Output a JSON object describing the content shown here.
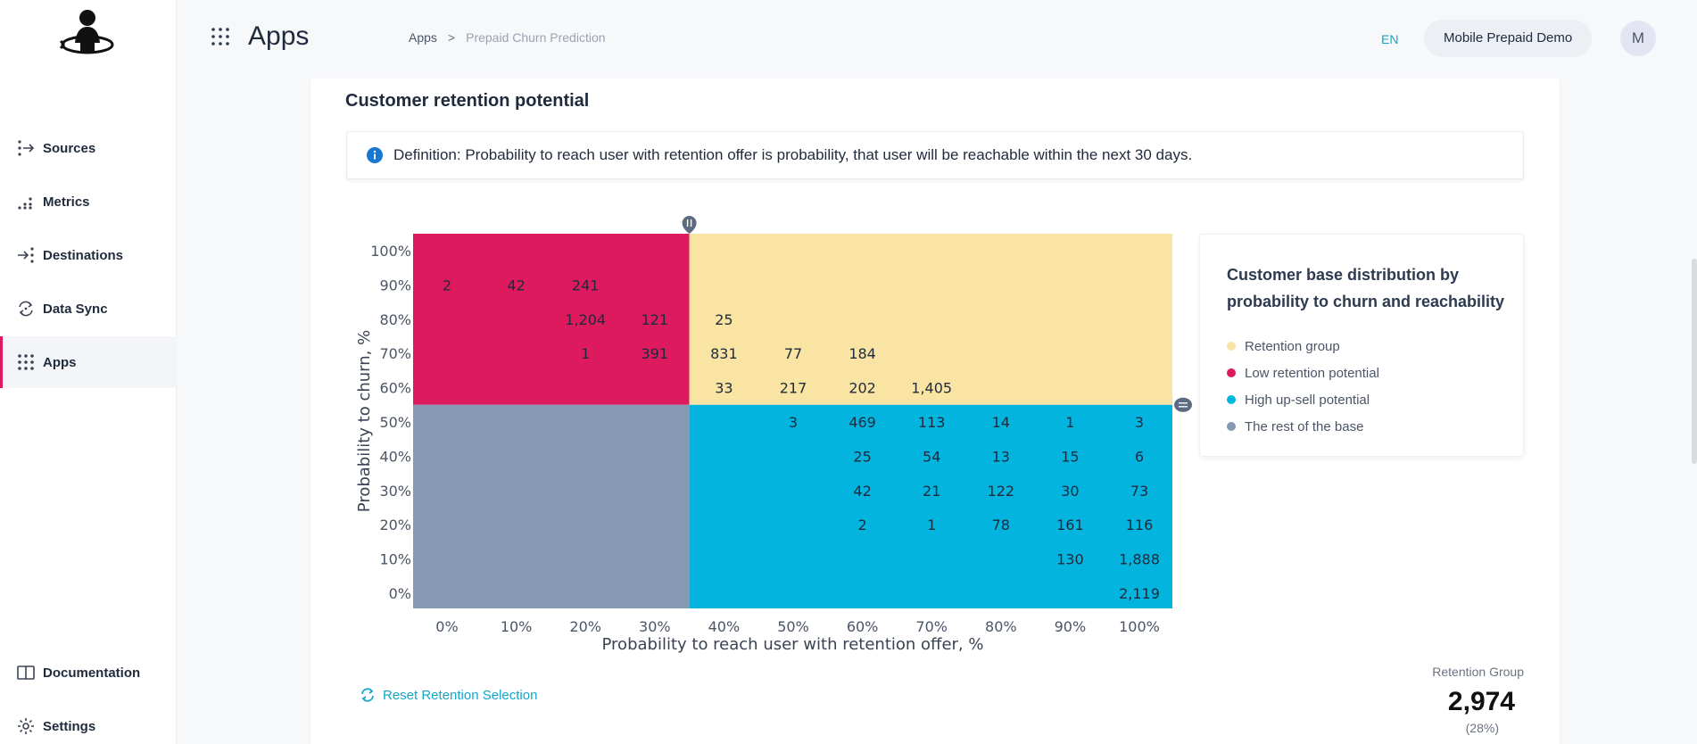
{
  "sidebar": {
    "items": [
      {
        "label": "Sources",
        "icon": "sources-icon"
      },
      {
        "label": "Metrics",
        "icon": "metrics-icon"
      },
      {
        "label": "Destinations",
        "icon": "destinations-icon"
      },
      {
        "label": "Data Sync",
        "icon": "data-sync-icon"
      },
      {
        "label": "Apps",
        "icon": "apps-icon",
        "active": true
      }
    ],
    "bottom": [
      {
        "label": "Documentation",
        "icon": "book-icon"
      },
      {
        "label": "Settings",
        "icon": "gear-icon"
      }
    ]
  },
  "header": {
    "title": "Apps",
    "breadcrumb": {
      "root": "Apps",
      "separator": ">",
      "current": "Prepaid Churn Prediction"
    },
    "language": "EN",
    "workspace": "Mobile Prepaid Demo",
    "avatar_initial": "M"
  },
  "section": {
    "title": "Customer retention potential",
    "definition": "Definition: Probability to reach user with retention offer is probability, that user will be reachable within the next 30 days."
  },
  "legend": {
    "title": "Customer base distribution by probability to churn and reachability",
    "items": [
      {
        "label": "Retention group",
        "color": "#f9e4a3"
      },
      {
        "label": "Low retention potential",
        "color": "#dd1a5e"
      },
      {
        "label": "High up-sell potential",
        "color": "#03b4de"
      },
      {
        "label": "The rest of the base",
        "color": "#8599b3"
      }
    ]
  },
  "reset_label": "Reset Retention Selection",
  "kpi": {
    "label": "Retention Group",
    "value": "2,974",
    "share": "(28%)"
  },
  "colors": {
    "accent": "#12a7c9",
    "active_nav": "#e0195d"
  },
  "chart_data": {
    "type": "heatmap",
    "xlabel": "Probability to reach user with retention offer, %",
    "ylabel": "Probability to churn, %",
    "x_ticks": [
      "0%",
      "10%",
      "20%",
      "30%",
      "40%",
      "50%",
      "60%",
      "70%",
      "80%",
      "90%",
      "100%"
    ],
    "y_ticks": [
      "100%",
      "90%",
      "80%",
      "70%",
      "60%",
      "50%",
      "40%",
      "30%",
      "20%",
      "10%",
      "0%"
    ],
    "thresholds": {
      "reach_percent": 35,
      "churn_percent": 55
    },
    "regions": [
      {
        "name": "Low retention potential",
        "reach": "below threshold",
        "churn": "above threshold",
        "color": "#dd1a5e"
      },
      {
        "name": "Retention group",
        "reach": "above threshold",
        "churn": "above threshold",
        "color": "#f9e4a3"
      },
      {
        "name": "The rest of the base",
        "reach": "below threshold",
        "churn": "below threshold",
        "color": "#8599b3"
      },
      {
        "name": "High up-sell potential",
        "reach": "above threshold",
        "churn": "below threshold",
        "color": "#03b4de"
      }
    ],
    "cells": [
      {
        "reach": "0%",
        "churn": "90%",
        "label": "2"
      },
      {
        "reach": "10%",
        "churn": "90%",
        "label": "42"
      },
      {
        "reach": "20%",
        "churn": "90%",
        "label": "241"
      },
      {
        "reach": "20%",
        "churn": "80%",
        "label": "1,204"
      },
      {
        "reach": "30%",
        "churn": "80%",
        "label": "121"
      },
      {
        "reach": "40%",
        "churn": "80%",
        "label": "25"
      },
      {
        "reach": "20%",
        "churn": "70%",
        "label": "1"
      },
      {
        "reach": "30%",
        "churn": "70%",
        "label": "391"
      },
      {
        "reach": "40%",
        "churn": "70%",
        "label": "831"
      },
      {
        "reach": "50%",
        "churn": "70%",
        "label": "77"
      },
      {
        "reach": "60%",
        "churn": "70%",
        "label": "184"
      },
      {
        "reach": "40%",
        "churn": "60%",
        "label": "33"
      },
      {
        "reach": "50%",
        "churn": "60%",
        "label": "217"
      },
      {
        "reach": "60%",
        "churn": "60%",
        "label": "202"
      },
      {
        "reach": "70%",
        "churn": "60%",
        "label": "1,405"
      },
      {
        "reach": "50%",
        "churn": "50%",
        "label": "3"
      },
      {
        "reach": "60%",
        "churn": "50%",
        "label": "469"
      },
      {
        "reach": "70%",
        "churn": "50%",
        "label": "113"
      },
      {
        "reach": "80%",
        "churn": "50%",
        "label": "14"
      },
      {
        "reach": "90%",
        "churn": "50%",
        "label": "1"
      },
      {
        "reach": "100%",
        "churn": "50%",
        "label": "3"
      },
      {
        "reach": "60%",
        "churn": "40%",
        "label": "25"
      },
      {
        "reach": "70%",
        "churn": "40%",
        "label": "54"
      },
      {
        "reach": "80%",
        "churn": "40%",
        "label": "13"
      },
      {
        "reach": "90%",
        "churn": "40%",
        "label": "15"
      },
      {
        "reach": "100%",
        "churn": "40%",
        "label": "6"
      },
      {
        "reach": "60%",
        "churn": "30%",
        "label": "42"
      },
      {
        "reach": "70%",
        "churn": "30%",
        "label": "21"
      },
      {
        "reach": "80%",
        "churn": "30%",
        "label": "122"
      },
      {
        "reach": "90%",
        "churn": "30%",
        "label": "30"
      },
      {
        "reach": "100%",
        "churn": "30%",
        "label": "73"
      },
      {
        "reach": "60%",
        "churn": "20%",
        "label": "2"
      },
      {
        "reach": "70%",
        "churn": "20%",
        "label": "1"
      },
      {
        "reach": "80%",
        "churn": "20%",
        "label": "78"
      },
      {
        "reach": "90%",
        "churn": "20%",
        "label": "161"
      },
      {
        "reach": "100%",
        "churn": "20%",
        "label": "116"
      },
      {
        "reach": "90%",
        "churn": "10%",
        "label": "130"
      },
      {
        "reach": "100%",
        "churn": "10%",
        "label": "1,888"
      },
      {
        "reach": "100%",
        "churn": "0%",
        "label": "2,119"
      }
    ]
  }
}
